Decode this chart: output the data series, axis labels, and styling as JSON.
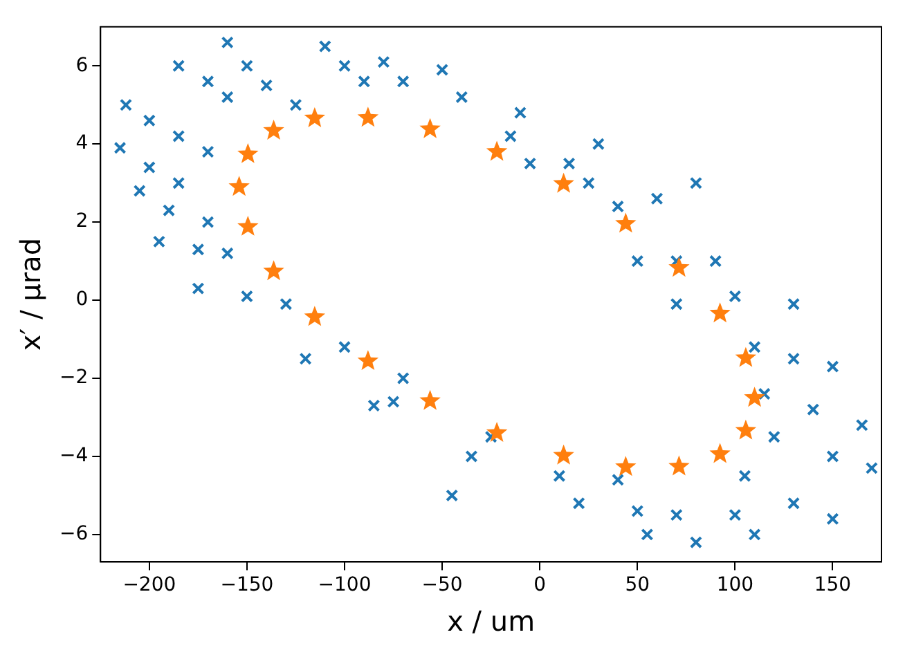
{
  "chart_data": {
    "type": "scatter",
    "xlabel": "x / um",
    "ylabel": "x′ / μrad",
    "xlim": [
      -225,
      175
    ],
    "ylim": [
      -6.7,
      7
    ],
    "xticks": [
      -200,
      -150,
      -100,
      -50,
      0,
      50,
      100,
      150
    ],
    "yticks": [
      -6,
      -4,
      -2,
      0,
      2,
      4,
      6
    ],
    "legend": false,
    "series": [
      {
        "color": "#1f77b4",
        "marker": "cross",
        "x": [
          -212,
          -200,
          -185,
          -170,
          -215,
          -200,
          -185,
          -205,
          -190,
          -170,
          -195,
          -175,
          -160,
          -175,
          -150,
          -130,
          -160,
          -150,
          -140,
          -125,
          -185,
          -170,
          -160,
          -110,
          -100,
          -90,
          -80,
          -70,
          -50,
          -40,
          -10,
          -15,
          -5,
          15,
          30,
          25,
          40,
          60,
          80,
          50,
          70,
          90,
          70,
          100,
          130,
          110,
          130,
          150,
          115,
          140,
          165,
          120,
          150,
          170,
          105,
          130,
          150,
          100,
          110,
          70,
          80,
          40,
          50,
          55,
          10,
          20,
          -25,
          -35,
          -45,
          -70,
          -75,
          -85,
          -100,
          -120
        ],
        "values": [
          5.0,
          4.6,
          4.2,
          3.8,
          3.9,
          3.4,
          3.0,
          2.8,
          2.3,
          2.0,
          1.5,
          1.3,
          1.2,
          0.3,
          0.1,
          -0.1,
          6.6,
          6.0,
          5.5,
          5.0,
          6.0,
          5.6,
          5.2,
          6.5,
          6.0,
          5.6,
          6.1,
          5.6,
          5.9,
          5.2,
          4.8,
          4.2,
          3.5,
          3.5,
          4.0,
          3.0,
          2.4,
          2.6,
          3.0,
          1.0,
          1.0,
          1.0,
          -0.1,
          0.1,
          -0.1,
          -1.2,
          -1.5,
          -1.7,
          -2.4,
          -2.8,
          -3.2,
          -3.5,
          -4.0,
          -4.3,
          -4.5,
          -5.2,
          -5.6,
          -5.5,
          -6.0,
          -5.5,
          -6.2,
          -4.6,
          -5.4,
          -6.0,
          -4.5,
          -5.2,
          -3.5,
          -4.0,
          -5.0,
          -2.0,
          -2.6,
          -2.7,
          -1.2,
          -1.5
        ]
      },
      {
        "color": "#ff7f0e",
        "marker": "star",
        "x": [
          110,
          105.5,
          92.3,
          71.3,
          44,
          12.2,
          -22,
          -56.2,
          -88,
          -115.3,
          -136.3,
          -149.5,
          -154,
          -149.5,
          -136.3,
          -115.3,
          -88,
          -56.2,
          -22,
          12.2,
          44,
          71.3,
          92.3,
          105.5
        ],
        "values": [
          -2.5,
          -3.34,
          -3.94,
          -4.26,
          -4.27,
          -3.98,
          -3.4,
          -2.58,
          -1.56,
          -0.43,
          0.74,
          1.88,
          2.9,
          3.74,
          4.34,
          4.66,
          4.67,
          4.38,
          3.8,
          2.98,
          1.96,
          0.83,
          -0.34,
          -1.48
        ]
      }
    ]
  }
}
